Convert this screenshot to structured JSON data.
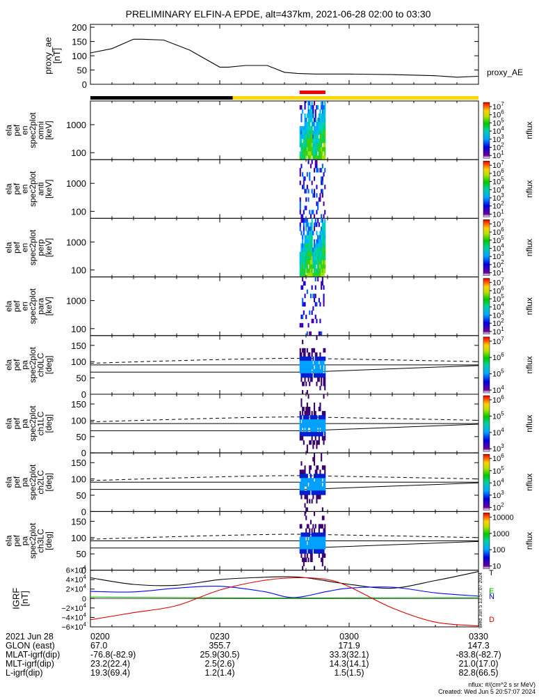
{
  "title": "PRELIMINARY ELFIN-A EPDE, alt=437km, 2021-06-28 02:00 to 03:30",
  "ae_panel": {
    "ylabel_lines": [
      "proxy_ae",
      "[nT]"
    ],
    "yticks": [
      "200",
      "150",
      "100",
      "50",
      "0"
    ],
    "legend": "proxy_AE"
  },
  "spec_panels": [
    {
      "ylabel_lines": [
        "ela",
        "pef",
        "en",
        "spec2plot",
        "omni",
        "[keV]"
      ],
      "yticks": [
        "1000",
        "100"
      ],
      "cbar_ticks": [
        "10^7",
        "10^6",
        "10^5",
        "10^4",
        "10^3",
        "10^2",
        "10^1"
      ],
      "cbar_label": "nflux"
    },
    {
      "ylabel_lines": [
        "ela",
        "pef",
        "en",
        "spec2plot",
        "anti",
        "[keV]"
      ],
      "yticks": [
        "1000",
        "100"
      ],
      "cbar_ticks": [
        "10^7",
        "10^6",
        "10^5",
        "10^4",
        "10^3",
        "10^2",
        "10^1"
      ],
      "cbar_label": "nflux"
    },
    {
      "ylabel_lines": [
        "ela",
        "pef",
        "en",
        "spec2plot",
        "perp",
        "[keV]"
      ],
      "yticks": [
        "1000",
        "100"
      ],
      "cbar_ticks": [
        "10^7",
        "10^6",
        "10^5",
        "10^4",
        "10^3",
        "10^2",
        "10^1"
      ],
      "cbar_label": "nflux"
    },
    {
      "ylabel_lines": [
        "ela",
        "pef",
        "en",
        "spec2plot",
        "para",
        "[keV]"
      ],
      "yticks": [
        "1000",
        "100"
      ],
      "cbar_ticks": [
        "10^7",
        "10^6",
        "10^5",
        "10^4",
        "10^3",
        "10^2",
        "10^1"
      ],
      "cbar_label": "nflux"
    },
    {
      "ylabel_lines": [
        "ela",
        "pef",
        "pa",
        "spec2plot",
        "ch0LC",
        "[deg]"
      ],
      "yticks": [
        "150",
        "100",
        "50",
        "0"
      ],
      "cbar_ticks": [
        "10^7",
        "10^6",
        "10^5",
        "10^4"
      ],
      "cbar_label": "nflux"
    },
    {
      "ylabel_lines": [
        "ela",
        "pef",
        "pa",
        "spec2plot",
        "ch1LC",
        "[deg]"
      ],
      "yticks": [
        "150",
        "100",
        "50",
        "0"
      ],
      "cbar_ticks": [
        "10^6",
        "10^5",
        "10^4",
        "10^3"
      ],
      "cbar_label": "nflux"
    },
    {
      "ylabel_lines": [
        "ela",
        "pef",
        "pa",
        "spec2plot",
        "ch2LC",
        "[deg]"
      ],
      "yticks": [
        "150",
        "100",
        "50",
        "0"
      ],
      "cbar_ticks": [
        "10^6",
        "10^5",
        "10^4",
        "10^3",
        "10^2"
      ],
      "cbar_label": "nflux"
    },
    {
      "ylabel_lines": [
        "ela",
        "pef",
        "pa",
        "spec2plot",
        "ch3LC",
        "[deg]"
      ],
      "yticks": [
        "150",
        "100",
        "50",
        "0"
      ],
      "cbar_ticks": [
        "10000",
        "1000",
        "100",
        "10"
      ],
      "cbar_label": "nflux"
    }
  ],
  "grf_panel": {
    "ylabel_lines": [
      "IGRF",
      "[nT]"
    ],
    "yticks": [
      "6×10^4",
      "4×10^4",
      "2×10^4",
      "0",
      "−2×10^4",
      "−4×10^4",
      "−6×10^4"
    ],
    "legend": [
      {
        "label": "T",
        "color": "#000000"
      },
      {
        "label": "E",
        "color": "#00aa00"
      },
      {
        "label": "N",
        "color": "#0000ff"
      },
      {
        "label": "D",
        "color": "#dd0000"
      }
    ],
    "side_stamp": "Wed Jun 5 13:57:07 2024"
  },
  "chart_data": {
    "type": "line",
    "title": "PRELIMINARY ELFIN-A EPDE, alt=437km, 2021-06-28 02:00 to 03:30",
    "time_axis": [
      "0200",
      "0230",
      "0300",
      "0330"
    ],
    "proxy_ae": {
      "name": "proxy_AE",
      "ylim": [
        0,
        210
      ],
      "x_min": [
        0,
        5,
        10,
        12,
        17,
        23,
        30,
        32,
        36,
        41,
        45,
        48,
        52,
        60,
        70,
        80,
        85,
        90
      ],
      "y_nT": [
        110,
        125,
        158,
        158,
        155,
        120,
        60,
        60,
        66,
        66,
        42,
        38,
        36,
        36,
        34,
        30,
        25,
        28
      ]
    },
    "orbit_bars": [
      {
        "color": "#000000",
        "from_min": 0,
        "to_min": 33
      },
      {
        "color": "#ffd700",
        "from_min": 33,
        "to_min": 90
      },
      {
        "color": "#ee0000",
        "from_min": 48.5,
        "to_min": 54.5
      }
    ],
    "igrf": {
      "ylim": [
        -60000,
        60000
      ],
      "series": [
        {
          "name": "T",
          "color": "#000000",
          "x_min": [
            0,
            10,
            20,
            30,
            40,
            45,
            50,
            60,
            70,
            80,
            90
          ],
          "values": [
            44000,
            30000,
            28000,
            40000,
            45000,
            46000,
            44000,
            30000,
            22000,
            38000,
            57000
          ]
        },
        {
          "name": "N",
          "color": "#0000ff",
          "x_min": [
            0,
            10,
            20,
            30,
            40,
            47,
            55,
            60,
            70,
            80,
            90
          ],
          "values": [
            15000,
            14000,
            22000,
            26000,
            15000,
            2000,
            15000,
            22000,
            24000,
            12000,
            5000
          ]
        },
        {
          "name": "E",
          "color": "#00aa00",
          "x_min": [
            0,
            20,
            40,
            60,
            90
          ],
          "values": [
            3000,
            2000,
            1000,
            1500,
            2000
          ]
        },
        {
          "name": "D",
          "color": "#dd0000",
          "x_min": [
            0,
            10,
            20,
            30,
            40,
            48,
            55,
            60,
            70,
            80,
            90
          ],
          "values": [
            -45000,
            -30000,
            -15000,
            18000,
            38000,
            44000,
            40000,
            25000,
            -20000,
            -50000,
            -58000
          ]
        }
      ]
    }
  },
  "footer": {
    "row_labels": [
      "2021 Jun 28",
      "GLON (east)",
      "MLAT-igrf(dip)",
      "MLT-igrf(dip)",
      "L-igrf(dip)"
    ],
    "columns": [
      [
        "0200",
        "67.0",
        "-76.8(-82.9)",
        "23.2(22.4)",
        "19.3(69.4)"
      ],
      [
        "0230",
        "355.7",
        "25.9(30.5)",
        "2.5(2.6)",
        "1.2(1.4)"
      ],
      [
        "0300",
        "171.9",
        "33.3(32.1)",
        "14.3(14.1)",
        "1.5(1.5)"
      ],
      [
        "0330",
        "147.3",
        "-83.8(-82.7)",
        "21.0(17.0)",
        "82.8(66.5)"
      ]
    ],
    "units_note": "nflux: #/(cm^2 s sr MeV)",
    "created": "Created: Wed Jun  5 20:57:07 2024"
  }
}
